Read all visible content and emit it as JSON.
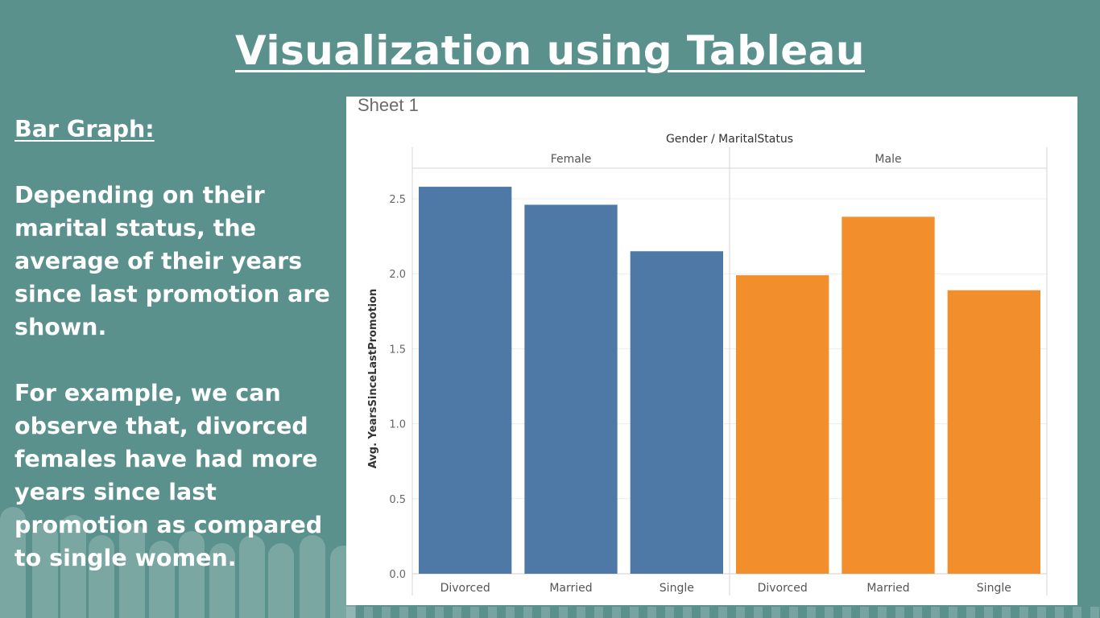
{
  "slide": {
    "title": "Visualization using Tableau",
    "section_heading": "Bar Graph:",
    "paragraph_1": "Depending on their marital status, the average of their years since last promotion are shown.",
    "paragraph_2": "For example, we can observe that, divorced females have had more years since last promotion as compared to single women."
  },
  "sheet": {
    "title": "Sheet 1"
  },
  "chart_data": {
    "type": "bar",
    "title": "Gender / MaritalStatus",
    "ylabel": "Avg. YearsSinceLastPromotion",
    "ylim": [
      0,
      2.75
    ],
    "yticks": [
      "0.0",
      "0.5",
      "1.0",
      "1.5",
      "2.0",
      "2.5"
    ],
    "grid": true,
    "panes": [
      {
        "name": "Female",
        "color": "#4e79a7",
        "categories": [
          "Divorced",
          "Married",
          "Single"
        ],
        "values": [
          2.58,
          2.46,
          2.15
        ]
      },
      {
        "name": "Male",
        "color": "#f28e2b",
        "categories": [
          "Divorced",
          "Married",
          "Single"
        ],
        "values": [
          1.99,
          2.38,
          1.89
        ]
      }
    ]
  },
  "colors": {
    "background": "#5a918d",
    "female": "#4e79a7",
    "male": "#f28e2b"
  }
}
